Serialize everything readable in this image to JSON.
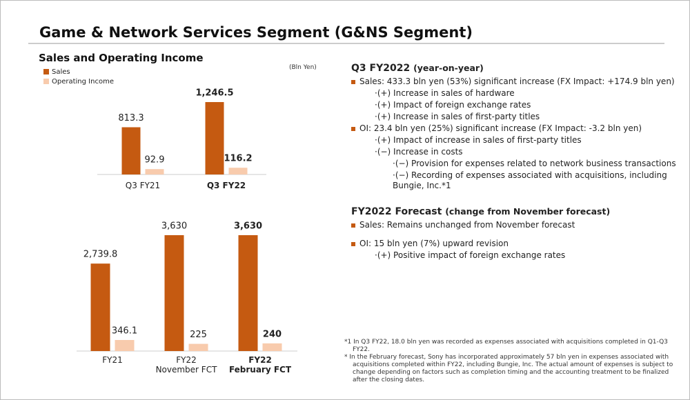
{
  "header": {
    "title": "Game & Network Services Segment (G&NS Segment)"
  },
  "chart_heading": "Sales and Operating Income",
  "unit": "(Bln Yen)",
  "chart_data": [
    {
      "type": "bar",
      "categories": [
        "Q3 FY21",
        "Q3 FY22"
      ],
      "series": [
        {
          "name": "Sales",
          "color": "#c55a11",
          "values": [
            813.3,
            1246.5
          ],
          "value_labels": [
            "813.3",
            "1,246.5"
          ]
        },
        {
          "name": "Operating Income",
          "color": "#f8cbad",
          "values": [
            92.9,
            116.2
          ]
        }
      ]
    },
    {
      "type": "bar",
      "categories": [
        "FY21",
        "FY22\nNovember FCT",
        "FY22\nFebruary FCT"
      ],
      "series": [
        {
          "color": "#c55a11",
          "values": [
            2739.8,
            3630,
            3630
          ],
          "value_labels": [
            "2,739.8",
            "3,630",
            "3,630"
          ]
        },
        {
          "color": "#f8cbad",
          "values": [
            346.1,
            225,
            240
          ]
        }
      ]
    }
  ],
  "summary": [
    {
      "heading": "Q3 FY2022",
      "note": "(year-on-year)",
      "items": [
        {
          "text": "Sales: 433.3 bln yen (53%) significant increase (FX Impact: +174.9 bln yen)",
          "sub": [
            {
              "text": "·(+) Increase in sales of hardware"
            },
            {
              "text": "·(+) Impact of foreign exchange rates"
            },
            {
              "text": "·(+) Increase in sales of first-party titles"
            }
          ]
        },
        {
          "text": "OI:  23.4 bln yen (25%) significant increase (FX Impact: -3.2 bln yen)",
          "sub": [
            {
              "text": "·(+) Impact of increase in sales of first-party titles"
            },
            {
              "text": "·(−) Increase in costs",
              "sub": [
                {
                  "text": "·(−) Provision for expenses related to network business transactions"
                },
                {
                  "text": "·(−) Recording of expenses associated with acquisitions, including Bungie, Inc.*1"
                }
              ]
            }
          ]
        }
      ]
    },
    {
      "heading": "FY2022 Forecast",
      "note": "(change from November forecast)",
      "items": [
        {
          "text": "Sales: Remains unchanged from November forecast"
        },
        {
          "text": "OI: 15 bln yen (7%) upward revision",
          "sub": [
            {
              "text": "·(+) Positive impact of foreign exchange rates"
            }
          ]
        }
      ]
    }
  ],
  "footnotes": [
    "*1 In Q3 FY22, 18.0 bln yen was recorded as expenses associated with acquisitions completed in Q1-Q3 FY22.",
    "*  In the February forecast, Sony has incorporated approximately 57 bln yen in expenses associated with acquisitions completed within FY22, including Bungie, Inc. The actual amount of expenses is subject to change depending on factors such as completion timing and the accounting treatment to be finalized after the closing dates."
  ]
}
